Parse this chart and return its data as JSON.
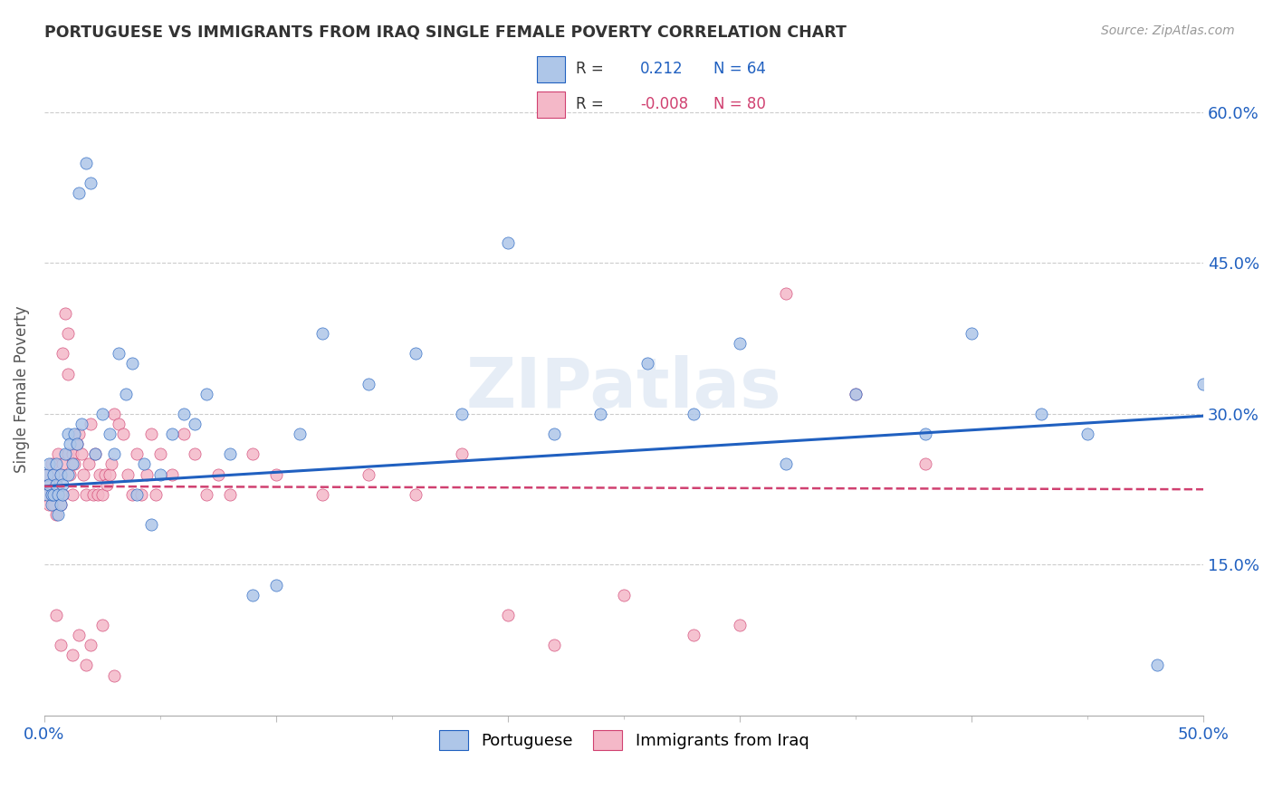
{
  "title": "PORTUGUESE VS IMMIGRANTS FROM IRAQ SINGLE FEMALE POVERTY CORRELATION CHART",
  "source": "Source: ZipAtlas.com",
  "ylabel": "Single Female Poverty",
  "legend_label1": "Portuguese",
  "legend_label2": "Immigrants from Iraq",
  "r1": "0.212",
  "n1": "64",
  "r2": "-0.008",
  "n2": "80",
  "color_blue": "#aec6e8",
  "color_pink": "#f4b8c8",
  "line_color_blue": "#2060c0",
  "line_color_pink": "#d04070",
  "text_dark": "#333333",
  "watermark": "ZIPatlas",
  "xlim": [
    0.0,
    0.5
  ],
  "ylim": [
    0.0,
    0.65
  ],
  "ytick_vals": [
    0.15,
    0.3,
    0.45,
    0.6
  ],
  "ytick_labels": [
    "15.0%",
    "30.0%",
    "45.0%",
    "60.0%"
  ],
  "port_line_x0": 0.0,
  "port_line_y0": 0.228,
  "port_line_x1": 0.5,
  "port_line_y1": 0.298,
  "iraq_line_x0": 0.0,
  "iraq_line_y0": 0.228,
  "iraq_line_x1": 0.5,
  "iraq_line_y1": 0.225,
  "portuguese_x": [
    0.001,
    0.001,
    0.002,
    0.002,
    0.003,
    0.003,
    0.004,
    0.004,
    0.005,
    0.005,
    0.006,
    0.006,
    0.007,
    0.007,
    0.008,
    0.008,
    0.009,
    0.01,
    0.01,
    0.011,
    0.012,
    0.013,
    0.014,
    0.015,
    0.016,
    0.018,
    0.02,
    0.022,
    0.025,
    0.028,
    0.03,
    0.032,
    0.035,
    0.038,
    0.04,
    0.043,
    0.046,
    0.05,
    0.055,
    0.06,
    0.065,
    0.07,
    0.08,
    0.09,
    0.1,
    0.11,
    0.12,
    0.14,
    0.16,
    0.18,
    0.2,
    0.22,
    0.24,
    0.26,
    0.28,
    0.3,
    0.32,
    0.35,
    0.38,
    0.4,
    0.43,
    0.45,
    0.48,
    0.5
  ],
  "portuguese_y": [
    0.22,
    0.24,
    0.23,
    0.25,
    0.21,
    0.22,
    0.24,
    0.22,
    0.23,
    0.25,
    0.2,
    0.22,
    0.24,
    0.21,
    0.23,
    0.22,
    0.26,
    0.28,
    0.24,
    0.27,
    0.25,
    0.28,
    0.27,
    0.52,
    0.29,
    0.55,
    0.53,
    0.26,
    0.3,
    0.28,
    0.26,
    0.36,
    0.32,
    0.35,
    0.22,
    0.25,
    0.19,
    0.24,
    0.28,
    0.3,
    0.29,
    0.32,
    0.26,
    0.12,
    0.13,
    0.28,
    0.38,
    0.33,
    0.36,
    0.3,
    0.47,
    0.28,
    0.3,
    0.35,
    0.3,
    0.37,
    0.25,
    0.32,
    0.28,
    0.38,
    0.3,
    0.28,
    0.05,
    0.33
  ],
  "iraq_x": [
    0.001,
    0.001,
    0.002,
    0.002,
    0.003,
    0.003,
    0.004,
    0.004,
    0.005,
    0.005,
    0.006,
    0.006,
    0.007,
    0.007,
    0.008,
    0.008,
    0.009,
    0.01,
    0.01,
    0.011,
    0.012,
    0.012,
    0.013,
    0.014,
    0.015,
    0.016,
    0.017,
    0.018,
    0.019,
    0.02,
    0.021,
    0.022,
    0.023,
    0.024,
    0.025,
    0.026,
    0.027,
    0.028,
    0.029,
    0.03,
    0.032,
    0.034,
    0.036,
    0.038,
    0.04,
    0.042,
    0.044,
    0.046,
    0.048,
    0.05,
    0.055,
    0.06,
    0.065,
    0.07,
    0.075,
    0.08,
    0.09,
    0.1,
    0.12,
    0.14,
    0.16,
    0.18,
    0.2,
    0.22,
    0.25,
    0.28,
    0.3,
    0.32,
    0.35,
    0.38,
    0.008,
    0.01,
    0.012,
    0.015,
    0.018,
    0.02,
    0.025,
    0.03,
    0.005,
    0.007
  ],
  "iraq_y": [
    0.22,
    0.24,
    0.21,
    0.23,
    0.25,
    0.22,
    0.24,
    0.21,
    0.23,
    0.2,
    0.26,
    0.22,
    0.24,
    0.21,
    0.25,
    0.22,
    0.4,
    0.38,
    0.26,
    0.24,
    0.22,
    0.26,
    0.25,
    0.27,
    0.28,
    0.26,
    0.24,
    0.22,
    0.25,
    0.29,
    0.22,
    0.26,
    0.22,
    0.24,
    0.22,
    0.24,
    0.23,
    0.24,
    0.25,
    0.3,
    0.29,
    0.28,
    0.24,
    0.22,
    0.26,
    0.22,
    0.24,
    0.28,
    0.22,
    0.26,
    0.24,
    0.28,
    0.26,
    0.22,
    0.24,
    0.22,
    0.26,
    0.24,
    0.22,
    0.24,
    0.22,
    0.26,
    0.1,
    0.07,
    0.12,
    0.08,
    0.09,
    0.42,
    0.32,
    0.25,
    0.36,
    0.34,
    0.06,
    0.08,
    0.05,
    0.07,
    0.09,
    0.04,
    0.1,
    0.07
  ]
}
